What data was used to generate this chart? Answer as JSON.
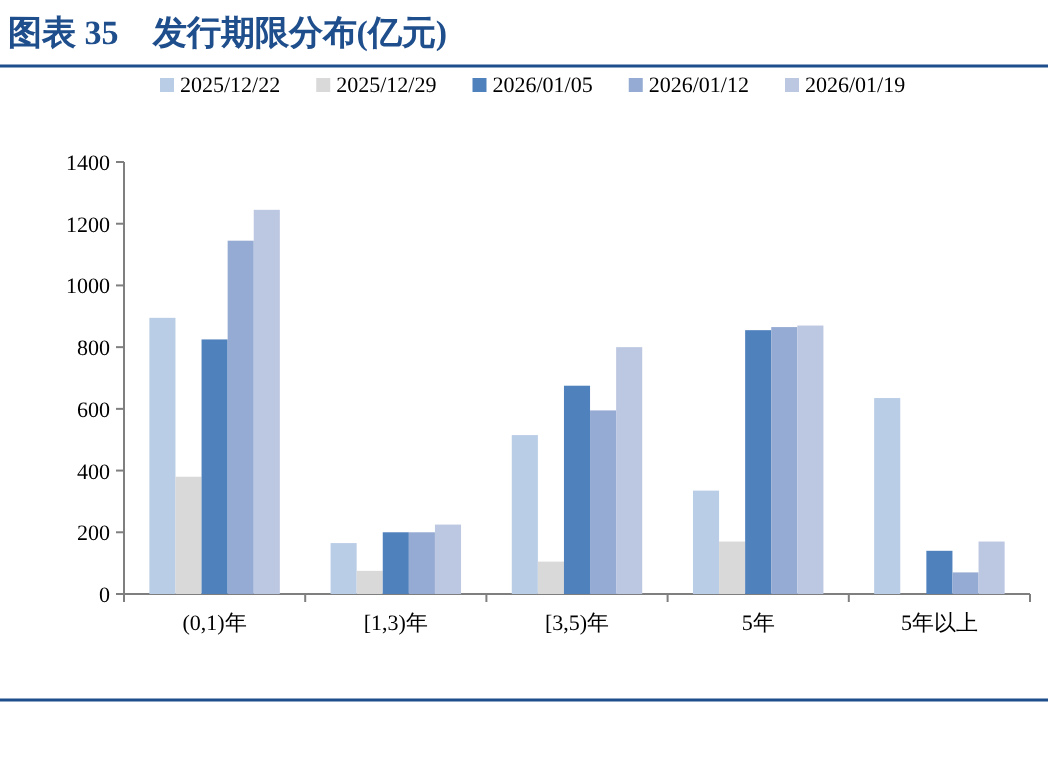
{
  "chart_data": {
    "type": "bar",
    "title": "图表 35　发行期限分布(亿元)",
    "categories": [
      "(0,1)年",
      "[1,3)年",
      "[3,5)年",
      "5年",
      "5年以上"
    ],
    "series": [
      {
        "name": "2025/12/22",
        "color": "#b9cde6",
        "values": [
          895,
          165,
          515,
          335,
          635
        ]
      },
      {
        "name": "2025/12/29",
        "color": "#d9d9d9",
        "values": [
          380,
          75,
          105,
          170,
          0
        ]
      },
      {
        "name": "2026/01/05",
        "color": "#4f81bd",
        "values": [
          825,
          200,
          675,
          855,
          140
        ]
      },
      {
        "name": "2026/01/12",
        "color": "#95abd3",
        "values": [
          1145,
          200,
          595,
          865,
          70
        ]
      },
      {
        "name": "2026/01/19",
        "color": "#bcc7e1",
        "values": [
          1245,
          225,
          800,
          870,
          170
        ]
      }
    ],
    "ylim": [
      0,
      1400
    ],
    "yticks": [
      0,
      200,
      400,
      600,
      800,
      1000,
      1200,
      1400
    ],
    "legend": "top",
    "grid": false
  }
}
